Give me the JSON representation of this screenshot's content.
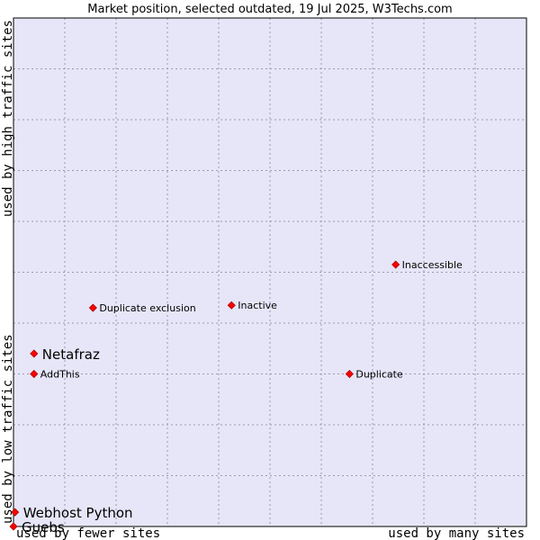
{
  "chart_data": {
    "type": "scatter",
    "title": "Market position, selected outdated, 19 Jul 2025, W3Techs.com",
    "xlabel_low": "used by fewer sites",
    "xlabel_high": "used by many sites",
    "ylabel_low": "used by low traffic sites",
    "ylabel_high": "used by high traffic sites",
    "xlim": [
      0,
      100
    ],
    "ylim": [
      0,
      100
    ],
    "grid": true,
    "colors": {
      "plot_bg": "#e6e6f8",
      "grid": "#9a9ab0",
      "point": "#ff0000",
      "point_edge": "#aa0000"
    },
    "points": [
      {
        "name": "Inaccessible",
        "x": 74.5,
        "y": 51.5,
        "size": "small"
      },
      {
        "name": "Duplicate exclusion",
        "x": 15.5,
        "y": 43.0,
        "size": "small"
      },
      {
        "name": "Inactive",
        "x": 42.5,
        "y": 43.5,
        "size": "small"
      },
      {
        "name": "Netafraz",
        "x": 4.0,
        "y": 34.0,
        "size": "big"
      },
      {
        "name": "AddThis",
        "x": 4.0,
        "y": 30.0,
        "size": "small"
      },
      {
        "name": "Duplicate",
        "x": 65.5,
        "y": 30.0,
        "size": "small"
      },
      {
        "name": "Webhost Python",
        "x": 0.3,
        "y": 2.8,
        "size": "big"
      },
      {
        "name": "Guebs",
        "x": 0.0,
        "y": 0.0,
        "size": "big"
      }
    ]
  }
}
